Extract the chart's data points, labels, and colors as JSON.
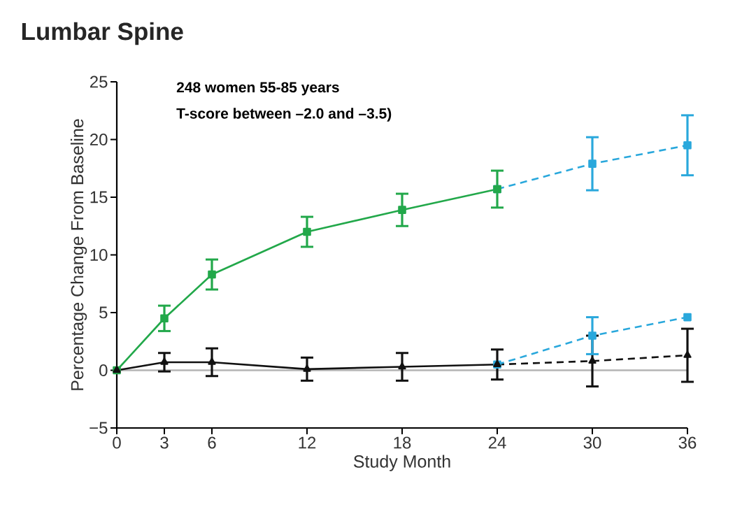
{
  "chart_data": {
    "type": "line",
    "title": "Lumbar Spine",
    "xlabel": "Study Month",
    "ylabel": "Percentage  Change From Baseline",
    "annotations": [
      "248 women 55-85 years",
      "T-score between –2.0 and –3.5)"
    ],
    "xlim": [
      0,
      36
    ],
    "xticks": [
      0,
      3,
      6,
      12,
      18,
      24,
      30,
      36
    ],
    "ylim": [
      -5,
      25
    ],
    "yticks": [
      {
        "value": -5,
        "label": "−5"
      },
      0,
      5,
      10,
      15,
      20,
      25
    ],
    "grid": false,
    "ref_lines": [
      {
        "axis": "y",
        "value": 0,
        "color": "#b4b4b4"
      }
    ],
    "series": [
      {
        "color": "#2aa8dc",
        "marker": "square",
        "line_style": "dashed",
        "x": [
          24,
          30,
          36
        ],
        "values": [
          15.7,
          17.9,
          19.5
        ],
        "errors": [
          null,
          2.3,
          2.6
        ]
      },
      {
        "color": "#111111",
        "marker": "triangle",
        "line_style": "dashed",
        "x": [
          24,
          30,
          36
        ],
        "values": [
          0.5,
          0.8,
          1.3
        ],
        "errors": [
          null,
          2.2,
          2.3
        ]
      },
      {
        "color": "#2aa8dc",
        "marker": "square",
        "line_style": "dashed",
        "x": [
          24,
          30,
          36
        ],
        "values": [
          0.5,
          3.0,
          4.6
        ],
        "errors": [
          null,
          1.6,
          null
        ]
      },
      {
        "color": "#22a84a",
        "marker": "square",
        "line_style": "solid",
        "x": [
          0,
          3,
          6,
          12,
          18,
          24
        ],
        "values": [
          0,
          4.5,
          8.3,
          12.0,
          13.9,
          15.7
        ],
        "errors": [
          null,
          1.1,
          1.3,
          1.3,
          1.4,
          1.6
        ]
      },
      {
        "color": "#111111",
        "marker": "triangle",
        "line_style": "solid",
        "x": [
          0,
          3,
          6,
          12,
          18,
          24
        ],
        "values": [
          0,
          0.7,
          0.7,
          0.1,
          0.3,
          0.5
        ],
        "errors": [
          null,
          0.8,
          1.2,
          1.0,
          1.2,
          1.3
        ]
      }
    ]
  }
}
